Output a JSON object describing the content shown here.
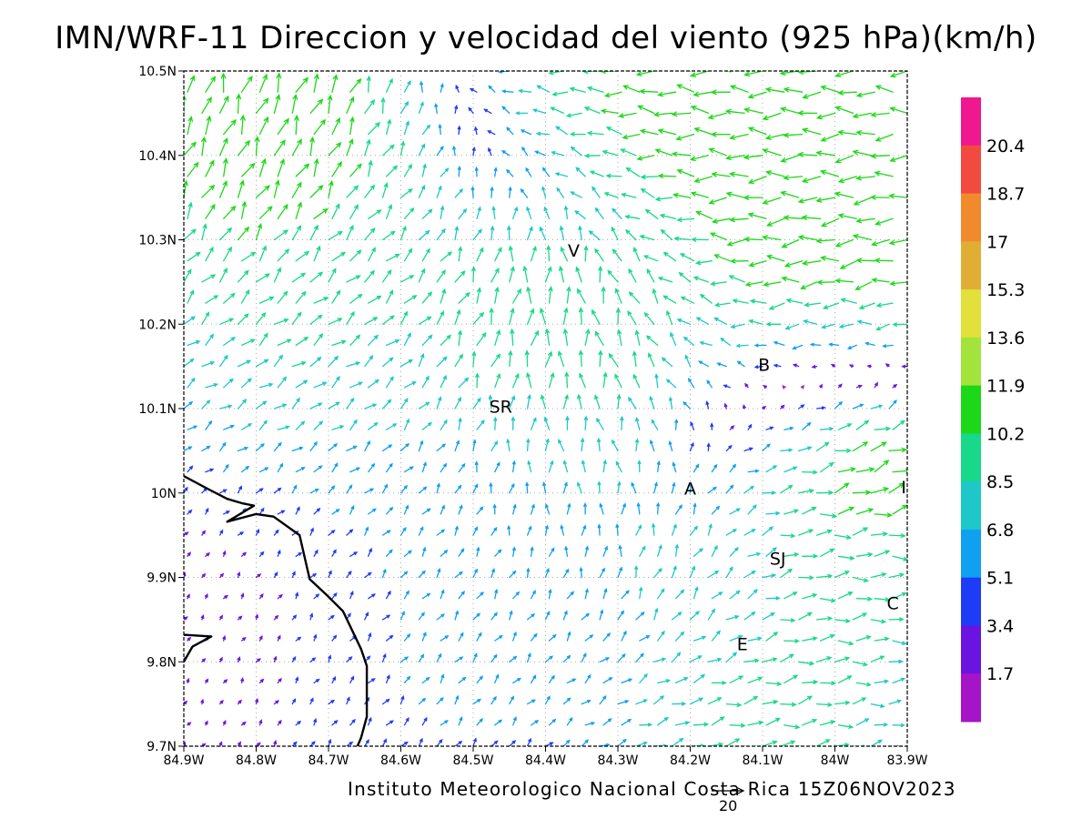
{
  "title": "IMN/WRF-11 Direccion y velocidad del viento (925 hPa)(km/h)",
  "footer": "Instituto Meteorologico Nacional Costa Rica  15Z06NOV2023",
  "reference_vector": {
    "value": "20",
    "speed": 20
  },
  "map": {
    "lon_range": [
      -84.9,
      -83.9
    ],
    "lat_range": [
      9.7,
      10.5
    ],
    "grid": "dotted",
    "x_ticks": [
      {
        "lon": -84.9,
        "label": "84.9W"
      },
      {
        "lon": -84.8,
        "label": "84.8W"
      },
      {
        "lon": -84.7,
        "label": "84.7W"
      },
      {
        "lon": -84.6,
        "label": "84.6W"
      },
      {
        "lon": -84.5,
        "label": "84.5W"
      },
      {
        "lon": -84.4,
        "label": "84.4W"
      },
      {
        "lon": -84.3,
        "label": "84.3W"
      },
      {
        "lon": -84.2,
        "label": "84.2W"
      },
      {
        "lon": -84.1,
        "label": "84.1W"
      },
      {
        "lon": -84.0,
        "label": "84W"
      },
      {
        "lon": -83.9,
        "label": "83.9W"
      }
    ],
    "y_ticks": [
      {
        "lat": 10.5,
        "label": "10.5N"
      },
      {
        "lat": 10.4,
        "label": "10.4N"
      },
      {
        "lat": 10.3,
        "label": "10.3N"
      },
      {
        "lat": 10.2,
        "label": "10.2N"
      },
      {
        "lat": 10.1,
        "label": "10.1N"
      },
      {
        "lat": 10.0,
        "label": "10N"
      },
      {
        "lat": 9.9,
        "label": "9.9N"
      },
      {
        "lat": 9.8,
        "label": "9.8N"
      },
      {
        "lat": 9.7,
        "label": "9.7N"
      }
    ],
    "cities": [
      {
        "label": "V",
        "lon": -84.361,
        "lat": 10.28
      },
      {
        "label": "SR",
        "lon": -84.462,
        "lat": 10.095
      },
      {
        "label": "B",
        "lon": -84.098,
        "lat": 10.145
      },
      {
        "label": "A",
        "lon": -84.2,
        "lat": 9.998
      },
      {
        "label": "I",
        "lon": -83.905,
        "lat": 10.0
      },
      {
        "label": "SJ",
        "lon": -84.079,
        "lat": 9.915
      },
      {
        "label": "C",
        "lon": -83.92,
        "lat": 9.862
      },
      {
        "label": "E",
        "lon": -84.128,
        "lat": 9.814
      }
    ],
    "coastlines": [
      [
        [
          -84.9,
          10.02
        ],
        [
          -84.865,
          10.004
        ],
        [
          -84.84,
          9.993
        ],
        [
          -84.82,
          9.988
        ],
        [
          -84.803,
          9.985
        ],
        [
          -84.84,
          9.966
        ],
        [
          -84.8,
          9.975
        ],
        [
          -84.776,
          9.972
        ],
        [
          -84.74,
          9.95
        ],
        [
          -84.726,
          9.898
        ],
        [
          -84.7,
          9.877
        ],
        [
          -84.68,
          9.86
        ],
        [
          -84.655,
          9.815
        ],
        [
          -84.647,
          9.795
        ],
        [
          -84.647,
          9.735
        ],
        [
          -84.655,
          9.71
        ],
        [
          -84.66,
          9.7
        ]
      ],
      [
        [
          -84.9,
          9.8
        ],
        [
          -84.888,
          9.818
        ],
        [
          -84.862,
          9.83
        ],
        [
          -84.9,
          9.832
        ]
      ]
    ]
  },
  "colorbar": {
    "levels": [
      "20.4",
      "18.7",
      "17",
      "15.3",
      "13.6",
      "11.9",
      "10.2",
      "8.5",
      "6.8",
      "5.1",
      "3.4",
      "1.7"
    ],
    "colors": [
      "#f0188e",
      "#f24a3e",
      "#f08a2c",
      "#e0ae34",
      "#e2e03a",
      "#a2e43c",
      "#1cd818",
      "#18d88a",
      "#1ec8c8",
      "#10a0f0",
      "#1e3cf6",
      "#6a14e0",
      "#a614c8"
    ]
  },
  "wind_field": {
    "units": "km/h",
    "features": [
      {
        "name": "trade-wind-stream",
        "lon": -84.1,
        "lat": 10.43,
        "u": -13,
        "v": 1.5,
        "r": 0.2
      },
      {
        "name": "trade-wind-stream",
        "lon": -84.0,
        "lat": 10.28,
        "u": -12,
        "v": -3,
        "r": 0.15
      },
      {
        "name": "northwest-slope-jet",
        "lon": -84.78,
        "lat": 10.4,
        "u": 4,
        "v": 14,
        "r": 0.12
      },
      {
        "name": "northwest-slope-flow",
        "lon": -84.72,
        "lat": 10.22,
        "u": 9,
        "v": 5,
        "r": 0.14
      },
      {
        "name": "volcano-rotor",
        "lon": -84.42,
        "lat": 10.2,
        "u": 5,
        "v": 13,
        "r": 0.1
      },
      {
        "name": "volcano-rotor",
        "lon": -84.3,
        "lat": 10.2,
        "u": -4,
        "v": 13,
        "r": 0.09
      },
      {
        "name": "central-valley-outflow",
        "lon": -84.02,
        "lat": 10.02,
        "u": 13,
        "v": 4,
        "r": 0.1
      },
      {
        "name": "caribbean-slope-jet",
        "lon": -83.95,
        "lat": 10.05,
        "u": 16,
        "v": 9,
        "r": 0.06
      },
      {
        "name": "east-valley-flow",
        "lon": -84.0,
        "lat": 9.95,
        "u": 10,
        "v": -1,
        "r": 0.1
      },
      {
        "name": "southern-upslope",
        "lon": -84.55,
        "lat": 9.88,
        "u": 4,
        "v": 5,
        "r": 0.18
      },
      {
        "name": "southwest-inflow",
        "lon": -84.12,
        "lat": 9.77,
        "u": 11,
        "v": 2,
        "r": 0.12
      },
      {
        "name": "sanramon-ridge",
        "lon": -84.2,
        "lat": 9.91,
        "u": 1,
        "v": 10,
        "r": 0.08
      },
      {
        "name": "pacific-calm",
        "lon": -84.8,
        "lat": 9.85,
        "u": 1,
        "v": 2,
        "r": 0.1
      },
      {
        "name": "central-convergence",
        "lon": -84.35,
        "lat": 10.03,
        "u": -3,
        "v": 8,
        "r": 0.1
      }
    ]
  }
}
